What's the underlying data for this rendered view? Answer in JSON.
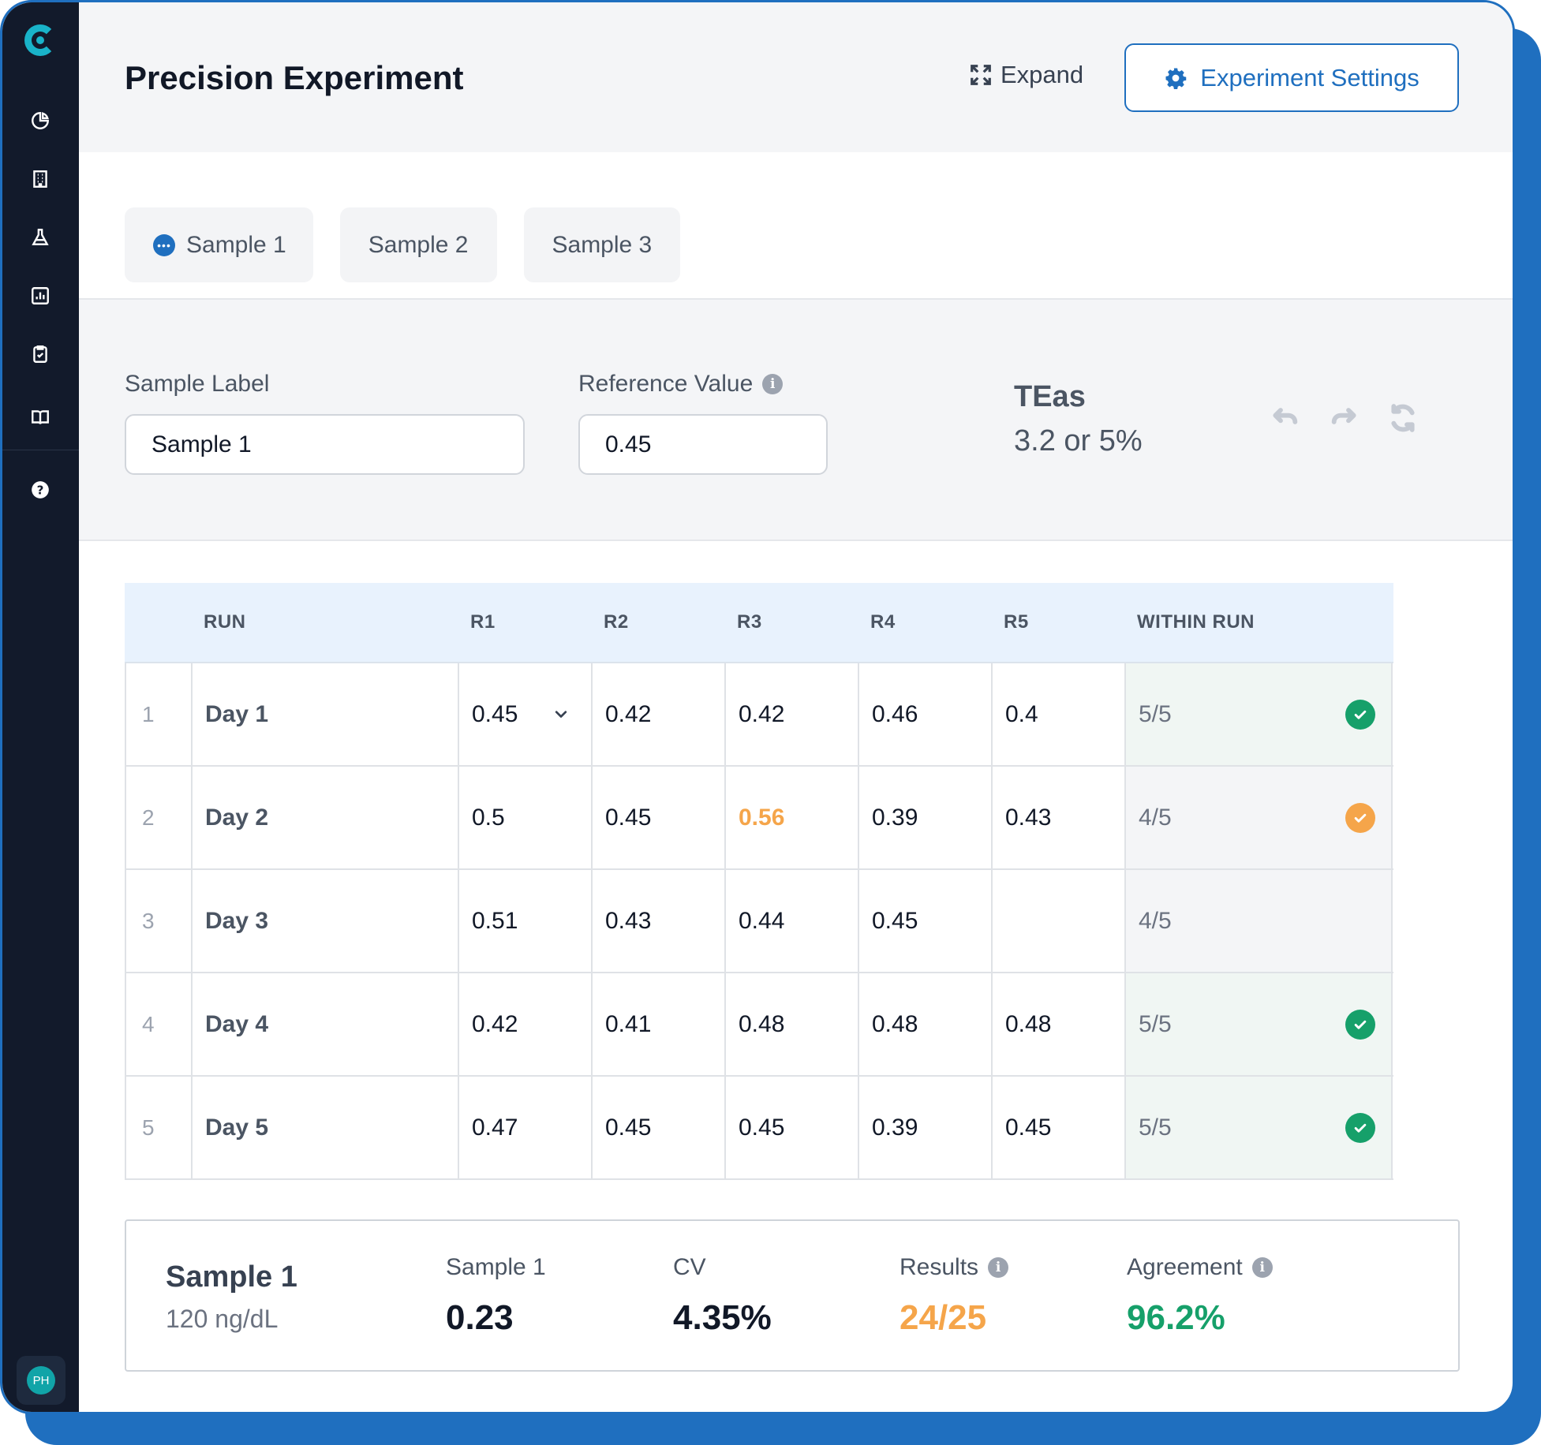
{
  "colors": {
    "primary": "#1f6fbf",
    "sidebar": "#121a2b",
    "accent_teal": "#19b3c9",
    "success": "#16a06a",
    "warning": "#f5a54a"
  },
  "sidebar": {
    "logo_icon": "app-logo",
    "items": [
      {
        "icon": "pie-chart-icon"
      },
      {
        "icon": "building-icon"
      },
      {
        "icon": "flask-icon"
      },
      {
        "icon": "bar-chart-icon"
      },
      {
        "icon": "clipboard-check-icon"
      },
      {
        "icon": "book-icon"
      }
    ],
    "help_icon": "help-icon",
    "avatar_initials": "PH"
  },
  "header": {
    "title": "Precision Experiment",
    "expand_label": "Expand",
    "settings_label": "Experiment Settings"
  },
  "tabs": [
    {
      "label": "Sample 1",
      "active": true
    },
    {
      "label": "Sample 2",
      "active": false
    },
    {
      "label": "Sample 3",
      "active": false
    }
  ],
  "form": {
    "sample_label": {
      "label": "Sample Label",
      "value": "Sample 1"
    },
    "reference_value": {
      "label": "Reference Value",
      "value": "0.45"
    },
    "teas": {
      "label": "TEas",
      "value": "3.2 or 5%"
    }
  },
  "table": {
    "headers": [
      "RUN",
      "R1",
      "R2",
      "R3",
      "R4",
      "R5",
      "WITHIN RUN"
    ],
    "rows": [
      {
        "index": "1",
        "run": "Day 1",
        "values": [
          "0.45",
          "0.42",
          "0.42",
          "0.46",
          "0.4"
        ],
        "within_run": "5/5",
        "status": "success"
      },
      {
        "index": "2",
        "run": "Day 2",
        "values": [
          "0.5",
          "0.45",
          "0.56",
          "0.39",
          "0.43"
        ],
        "within_run": "4/5",
        "status": "warning",
        "flagged_col": 2
      },
      {
        "index": "3",
        "run": "Day 3",
        "values": [
          "0.51",
          "0.43",
          "0.44",
          "0.45",
          ""
        ],
        "within_run": "4/5",
        "status": "none"
      },
      {
        "index": "4",
        "run": "Day 4",
        "values": [
          "0.42",
          "0.41",
          "0.48",
          "0.48",
          "0.48"
        ],
        "within_run": "5/5",
        "status": "success"
      },
      {
        "index": "5",
        "run": "Day 5",
        "values": [
          "0.47",
          "0.45",
          "0.45",
          "0.39",
          "0.45"
        ],
        "within_run": "5/5",
        "status": "success"
      }
    ]
  },
  "summary": {
    "title": "Sample 1",
    "subtitle": "120 ng/dL",
    "stats": [
      {
        "label": "Sample 1",
        "value": "0.23"
      },
      {
        "label": "CV",
        "value": "4.35%"
      },
      {
        "label": "Results",
        "value": "24/25"
      },
      {
        "label": "Agreement",
        "value": "96.2%"
      }
    ]
  }
}
